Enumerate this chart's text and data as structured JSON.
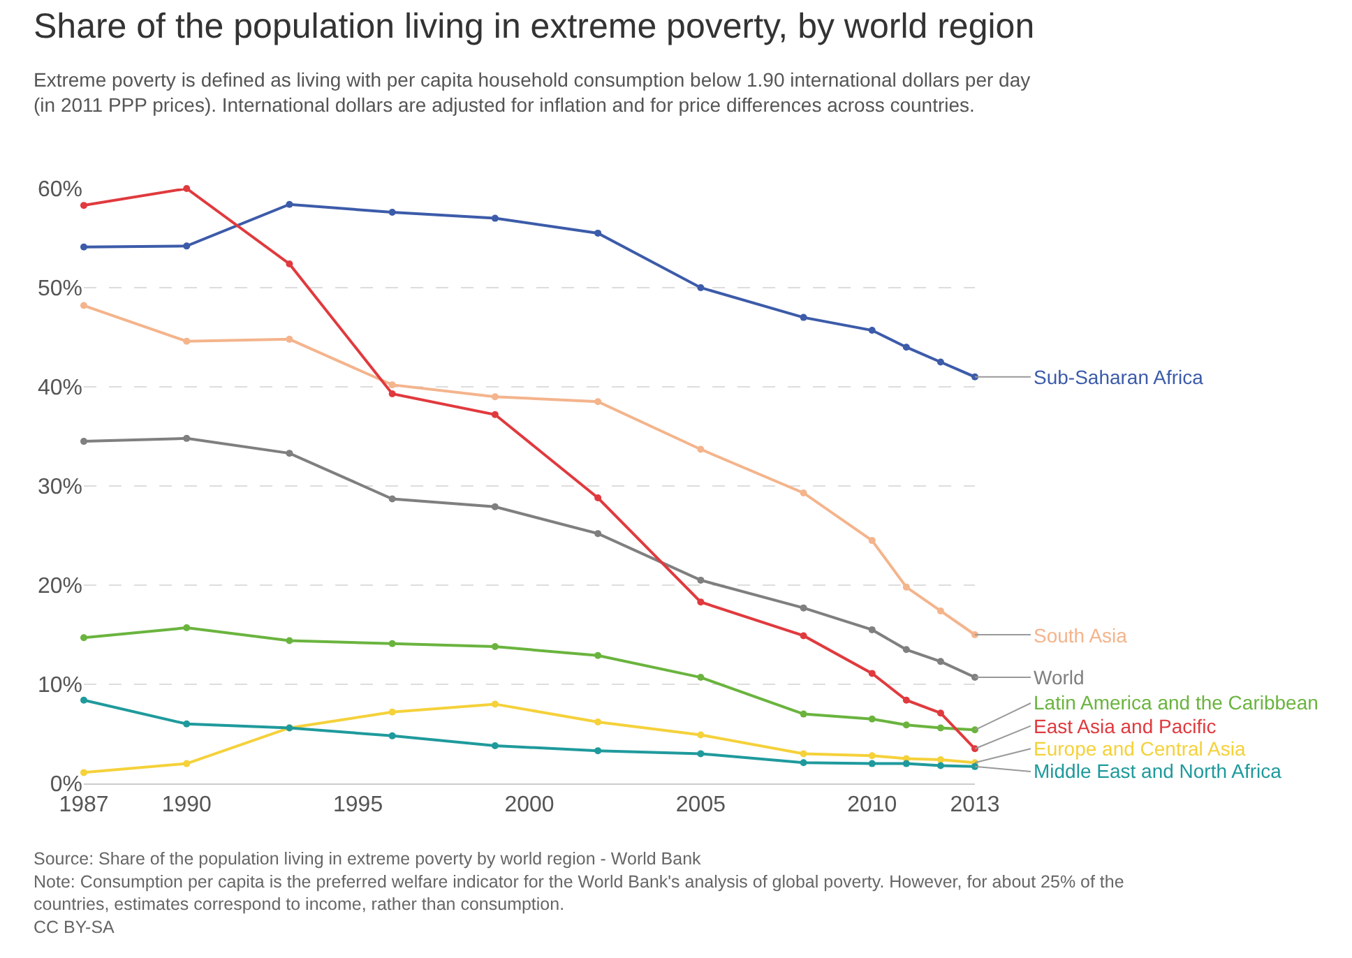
{
  "chart_data": {
    "type": "line",
    "title": "Share of the population living in extreme poverty, by world region",
    "subtitle": "Extreme poverty is defined as living with per capita household consumption below 1.90 international dollars per day\n(in 2011 PPP prices). International dollars are adjusted for inflation and for price differences across countries.",
    "x": [
      1987,
      1990,
      1993,
      1996,
      1999,
      2002,
      2005,
      2008,
      2010,
      2011,
      2012,
      2013
    ],
    "series": [
      {
        "name": "Sub-Saharan Africa",
        "color": "#3c5ba9",
        "values": [
          54.1,
          54.2,
          58.4,
          57.6,
          57.0,
          55.5,
          50.0,
          47.0,
          45.7,
          44.0,
          42.5,
          41.0
        ]
      },
      {
        "name": "South Asia",
        "color": "#f4b48c",
        "values": [
          48.2,
          44.6,
          44.8,
          40.2,
          39.0,
          38.5,
          33.7,
          29.3,
          24.5,
          19.8,
          17.4,
          15.0
        ]
      },
      {
        "name": "World",
        "color": "#7f7f7f",
        "values": [
          34.5,
          34.8,
          33.3,
          28.7,
          27.9,
          25.2,
          20.5,
          17.7,
          15.5,
          13.5,
          12.3,
          10.7
        ]
      },
      {
        "name": "Latin America and the Caribbean",
        "color": "#6ab43e",
        "values": [
          14.7,
          15.7,
          14.4,
          14.1,
          13.8,
          12.9,
          10.7,
          7.0,
          6.5,
          5.9,
          5.6,
          5.4
        ]
      },
      {
        "name": "East Asia and Pacific",
        "color": "#e03a3e",
        "values": [
          58.3,
          60.0,
          52.4,
          39.3,
          37.2,
          28.8,
          18.3,
          14.9,
          11.1,
          8.4,
          7.1,
          3.5
        ]
      },
      {
        "name": "Europe and Central Asia",
        "color": "#f5d13a",
        "values": [
          1.1,
          2.0,
          5.6,
          7.2,
          8.0,
          6.2,
          4.9,
          3.0,
          2.8,
          2.5,
          2.4,
          2.1
        ]
      },
      {
        "name": "Middle East and North Africa",
        "color": "#1f9a9c",
        "values": [
          8.4,
          6.0,
          5.6,
          4.8,
          3.8,
          3.3,
          3.0,
          2.1,
          2.0,
          2.0,
          1.8,
          1.7
        ]
      }
    ],
    "xlim": [
      1987,
      2013
    ],
    "xticks": [
      1987,
      1990,
      1995,
      2000,
      2005,
      2010,
      2013
    ],
    "ylim": [
      0,
      60
    ],
    "yticks": [
      {
        "value": 0,
        "label": "0%"
      },
      {
        "value": 10,
        "label": "10%"
      },
      {
        "value": 20,
        "label": "20%"
      },
      {
        "value": 30,
        "label": "30%"
      },
      {
        "value": 40,
        "label": "40%"
      },
      {
        "value": 50,
        "label": "50%"
      },
      {
        "value": 60,
        "label": "60%"
      }
    ],
    "grid": "y",
    "legend": false,
    "marker": "circle",
    "line_style": "solid",
    "annotations": [
      "Source: Share of the population living in extreme poverty by world region - World Bank",
      "Note: Consumption per capita is the preferred welfare indicator for the World Bank's analysis of global poverty. However, for about 25% of the\ncountries, estimates correspond to income, rather than consumption.",
      "CC BY-SA"
    ]
  }
}
